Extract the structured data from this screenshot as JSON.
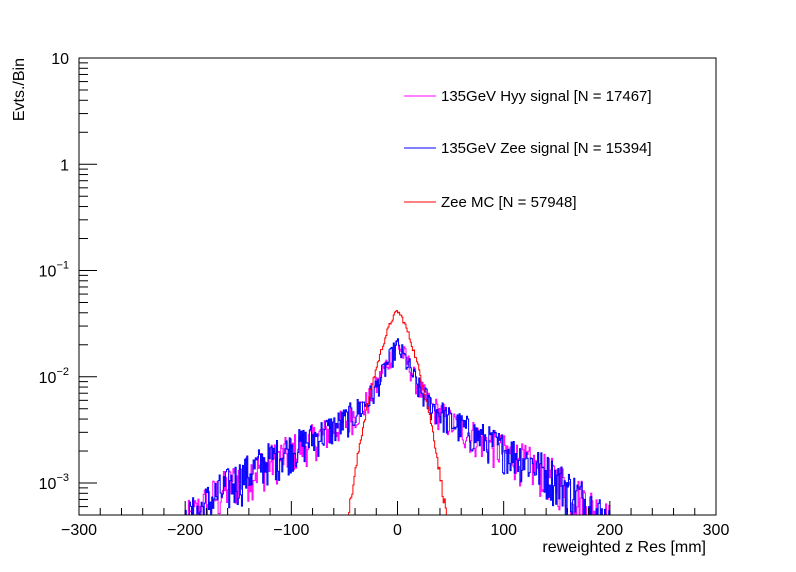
{
  "chart_data": {
    "type": "line",
    "style": "histogram",
    "title": "",
    "xlabel": "reweighted z Res [mm]",
    "ylabel": "Evts./Bin",
    "xlim": [
      -300,
      300
    ],
    "ylim": [
      0.0005,
      10
    ],
    "yscale": "log",
    "grid": false,
    "legend_position": "top-right",
    "x_ticks": [
      "−300",
      "−200",
      "−100",
      "0",
      "100",
      "200",
      "300"
    ],
    "x_tick_values": [
      -300,
      -200,
      -100,
      0,
      100,
      200,
      300
    ],
    "y_ticks": [
      {
        "base": "10",
        "exp": "−3",
        "value": 0.001
      },
      {
        "base": "10",
        "exp": "−2",
        "value": 0.01
      },
      {
        "base": "10",
        "exp": "−1",
        "value": 0.1
      },
      {
        "base": "1",
        "exp": "",
        "value": 1
      },
      {
        "base": "10",
        "exp": "",
        "value": 10
      }
    ],
    "series": [
      {
        "name": "135GeV Hyy signal [N = 17467]",
        "color": "#ff00ff",
        "bin_width": 1,
        "noise": 0.25,
        "x": [
          -200,
          -175,
          -150,
          -125,
          -100,
          -75,
          -50,
          -30,
          -20,
          -10,
          0,
          10,
          20,
          30,
          50,
          75,
          100,
          125,
          150,
          175,
          200
        ],
        "y": [
          0.0004,
          0.0007,
          0.0011,
          0.0015,
          0.002,
          0.0027,
          0.0037,
          0.0055,
          0.008,
          0.0135,
          0.021,
          0.0135,
          0.008,
          0.0055,
          0.0037,
          0.0027,
          0.002,
          0.0015,
          0.0011,
          0.0007,
          0.0004
        ]
      },
      {
        "name": "135GeV Zee signal [N = 15394]",
        "color": "#0000ff",
        "bin_width": 1,
        "noise": 0.25,
        "x": [
          -200,
          -175,
          -150,
          -125,
          -100,
          -75,
          -50,
          -30,
          -20,
          -10,
          0,
          10,
          20,
          30,
          50,
          75,
          100,
          125,
          150,
          175,
          200
        ],
        "y": [
          0.0004,
          0.0007,
          0.0011,
          0.0016,
          0.0021,
          0.0028,
          0.0038,
          0.0056,
          0.0078,
          0.013,
          0.0195,
          0.013,
          0.0078,
          0.0056,
          0.0038,
          0.0028,
          0.0021,
          0.0016,
          0.0011,
          0.0007,
          0.0004
        ]
      },
      {
        "name": "Zee MC [N = 57948]",
        "color": "#ff0000",
        "bin_width": 1,
        "noise": 0.06,
        "x": [
          -50,
          -45,
          -40,
          -35,
          -30,
          -25,
          -20,
          -15,
          -10,
          -5,
          0,
          5,
          10,
          15,
          20,
          25,
          30,
          35,
          40,
          45,
          50
        ],
        "y": [
          0.0003,
          0.0006,
          0.0012,
          0.0025,
          0.0045,
          0.0075,
          0.012,
          0.018,
          0.026,
          0.035,
          0.042,
          0.035,
          0.026,
          0.018,
          0.012,
          0.0075,
          0.0045,
          0.0025,
          0.0012,
          0.0006,
          0.0003
        ]
      }
    ]
  }
}
